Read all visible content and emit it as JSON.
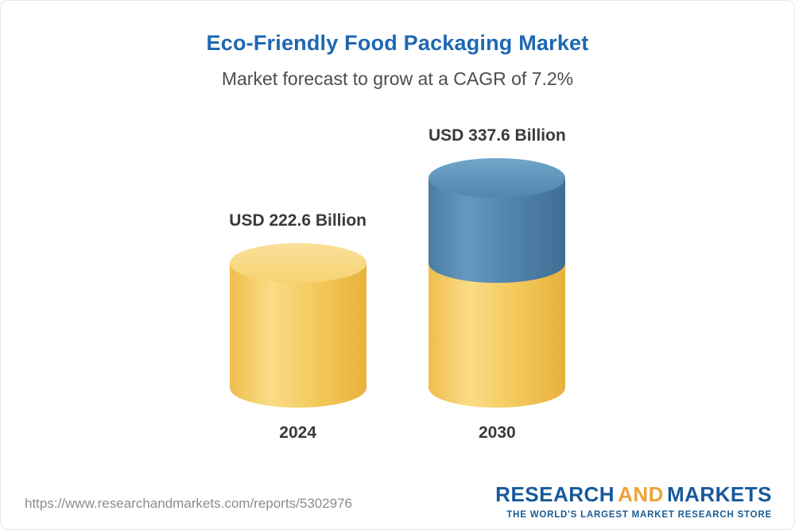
{
  "header": {
    "title": "Eco-Friendly Food Packaging Market",
    "subtitle": "Market forecast to grow at a CAGR of 7.2%"
  },
  "chart_data": {
    "type": "bar",
    "bar_style": "cylinder",
    "categories": [
      "2024",
      "2030"
    ],
    "values": [
      222.6,
      337.6
    ],
    "value_labels": [
      "USD 222.6 Billion",
      "USD 337.6 Billion"
    ],
    "unit": "USD Billion",
    "title": "Eco-Friendly Food Packaging Market",
    "subtitle": "Market forecast to grow at a CAGR of 7.2%",
    "cagr_percent": 7.2,
    "legend": "none",
    "grid": false,
    "colors": {
      "base_segment": "#f3ca5d",
      "growth_segment": "#5586ae",
      "title": "#1e68b2",
      "label_text": "#3a3a3a"
    }
  },
  "footer": {
    "url": "https://www.researchandmarkets.com/reports/5302976",
    "logo": {
      "research": "RESEARCH",
      "and": "AND",
      "markets": "MARKETS",
      "tagline": "THE WORLD'S LARGEST MARKET RESEARCH STORE"
    }
  }
}
